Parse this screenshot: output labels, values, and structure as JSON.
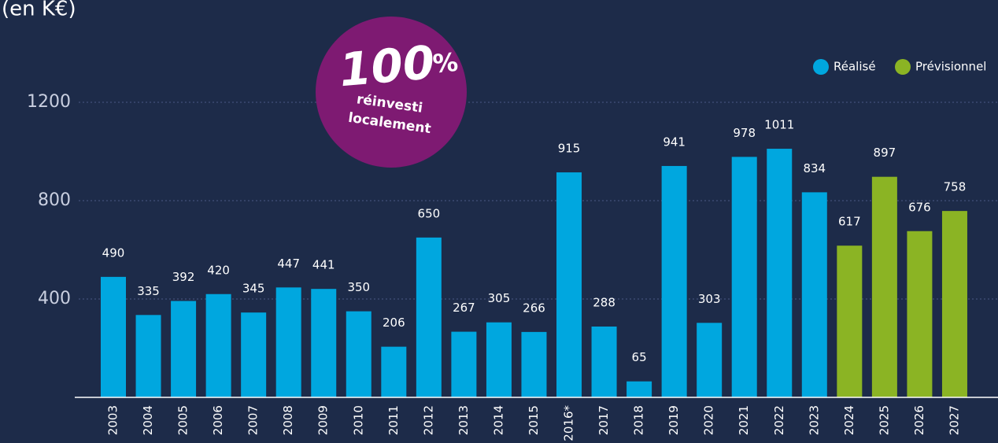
{
  "chart_data": {
    "type": "bar",
    "title": "(en K€)",
    "annotation": {
      "main": "100",
      "unit": "%",
      "lines": [
        "réinvesti",
        "localement"
      ]
    },
    "categories": [
      "2003",
      "2004",
      "2005",
      "2006",
      "2007",
      "2008",
      "2009",
      "2010",
      "2011",
      "2012",
      "2013",
      "2014",
      "2015",
      "2016*",
      "2017",
      "2018",
      "2019",
      "2020",
      "2021",
      "2022",
      "2023",
      "2024",
      "2025",
      "2026",
      "2027"
    ],
    "series": [
      {
        "name": "Réalisé",
        "color": "#00a7df",
        "values": [
          490,
          335,
          392,
          420,
          345,
          447,
          441,
          350,
          206,
          650,
          267,
          305,
          266,
          915,
          288,
          65,
          941,
          303,
          978,
          1011,
          834,
          null,
          null,
          null,
          null
        ]
      },
      {
        "name": "Prévisionnel",
        "color": "#8bb424",
        "values": [
          null,
          null,
          null,
          null,
          null,
          null,
          null,
          null,
          null,
          null,
          null,
          null,
          null,
          null,
          null,
          null,
          null,
          null,
          null,
          null,
          null,
          617,
          897,
          676,
          758
        ]
      }
    ],
    "ylim": [
      0,
      1200
    ],
    "yticks": [
      400,
      800,
      1200
    ],
    "grid": true,
    "legend": "top-right"
  }
}
